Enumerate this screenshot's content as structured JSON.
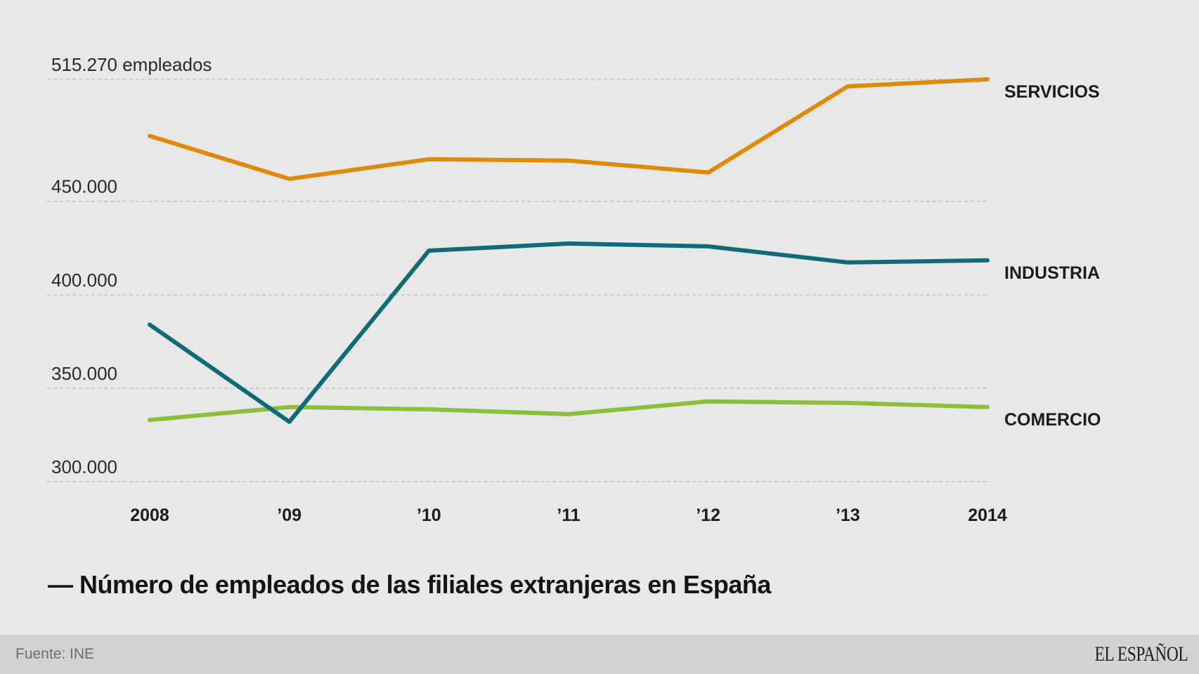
{
  "chart_data": {
    "type": "line",
    "title": "Número de empleados de las filiales extranjeras en España",
    "title_prefix": "—",
    "xlabel": "",
    "ylabel": "",
    "categories": [
      "2008",
      "'09",
      "'10",
      "'11",
      "'12",
      "'13",
      "2014"
    ],
    "x_tick_labels": [
      "2008",
      "’09",
      "’10",
      "’11",
      "’12",
      "’13",
      "2014"
    ],
    "ylim": [
      300000,
      515270
    ],
    "y_ticks": [
      {
        "value": 515270,
        "label": "515.270 empleados"
      },
      {
        "value": 450000,
        "label": "450.000"
      },
      {
        "value": 400000,
        "label": "400.000"
      },
      {
        "value": 350000,
        "label": "350.000"
      },
      {
        "value": 300000,
        "label": "300.000"
      }
    ],
    "grid": true,
    "legend": "direct labels at right",
    "series": [
      {
        "name": "SERVICIOS",
        "color": "#e08a0b",
        "values": [
          485000,
          462000,
          472500,
          471800,
          465400,
          511500,
          515270
        ]
      },
      {
        "name": "INDUSTRIA",
        "color": "#0f6b75",
        "values": [
          384000,
          332000,
          423600,
          427400,
          425900,
          417300,
          418400
        ]
      },
      {
        "name": "COMERCIO",
        "color": "#8cc03a",
        "values": [
          333000,
          339900,
          338700,
          336100,
          342900,
          342100,
          339900
        ]
      }
    ]
  },
  "footer": {
    "source": "Fuente: INE",
    "logo": "EL ESPAÑOL"
  },
  "colors": {
    "background": "#e8e8e8",
    "footer_background": "#d2d2d2",
    "gridline": "#c4c4c4"
  }
}
